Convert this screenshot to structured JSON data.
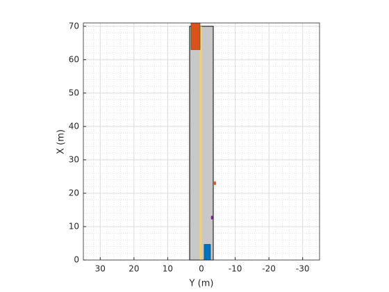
{
  "chart_data": {
    "type": "scenario",
    "xlabel": "Y (m)",
    "ylabel": "X (m)",
    "xlim": [
      35,
      -35
    ],
    "ylim": [
      0,
      71
    ],
    "xticks": [
      30,
      20,
      10,
      0,
      -10,
      -20,
      -30
    ],
    "yticks": [
      0,
      10,
      20,
      30,
      40,
      50,
      60,
      70
    ],
    "grid": true,
    "minor_grid": true,
    "road": {
      "color": "#c8c8c8",
      "x": [
        0,
        70
      ],
      "y": [
        3.5,
        -3.5
      ],
      "lane_marking": {
        "color": "#f2d36b",
        "y": 0.2
      }
    },
    "actors": [
      {
        "color": "#0072bd",
        "x": [
          0,
          4.7
        ],
        "y": [
          -0.8,
          -2.7
        ]
      },
      {
        "color": "#d95319",
        "x": [
          63,
          71
        ],
        "y": [
          3.1,
          0.4
        ]
      }
    ],
    "markers": [
      {
        "color": "#7e2f8e",
        "x": 12.7,
        "y": -3.1
      },
      {
        "color": "#d95319",
        "x": 23,
        "y": -4
      }
    ]
  }
}
